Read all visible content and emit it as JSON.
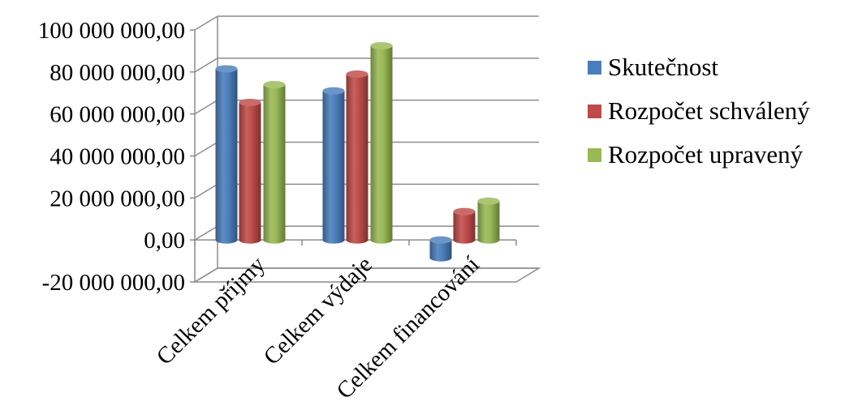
{
  "chart_data": {
    "type": "bar",
    "title": "",
    "xlabel": "",
    "ylabel": "",
    "categories": [
      "Celkem příjmy",
      "Celkem výdaje",
      "Celkem financování"
    ],
    "series": [
      {
        "name": "Skutečnost",
        "color": "#4a7ebb",
        "values": [
          81500000,
          71000000,
          -8500000
        ]
      },
      {
        "name": "Rozpočet schválený",
        "color": "#be4b48",
        "values": [
          65500000,
          79000000,
          13500000
        ]
      },
      {
        "name": "Rozpočet upravený",
        "color": "#98b954",
        "values": [
          74000000,
          92500000,
          18500000
        ]
      }
    ],
    "ylim": [
      -20000000,
      100000000
    ],
    "y_ticks": [
      -20000000,
      0,
      20000000,
      40000000,
      60000000,
      80000000,
      100000000
    ],
    "y_tick_labels": [
      "-20 000 000,00",
      "0,00",
      "20 000 000,00",
      "40 000 000,00",
      "60 000 000,00",
      "80 000 000,00",
      "100 000 000,00"
    ],
    "grid": true,
    "style": "3d-cylinder",
    "legend_position": "right"
  }
}
